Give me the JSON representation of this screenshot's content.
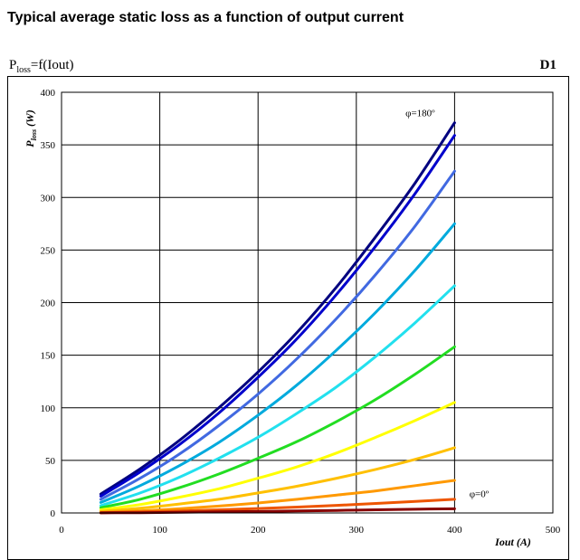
{
  "title": "Typical average static loss as a function of output current",
  "subtitle": {
    "main": "P",
    "sub": "loss",
    "rest": "=f(Iout)"
  },
  "code": "D1",
  "chart_data": {
    "type": "line",
    "xlabel": "Iout (A)",
    "ylabel": {
      "main": "P",
      "sub": "loss",
      "rest": " (W)"
    },
    "xlim": [
      0,
      500
    ],
    "ylim": [
      0,
      400
    ],
    "xticks": [
      0,
      100,
      200,
      300,
      400,
      500
    ],
    "yticks": [
      0,
      50,
      100,
      150,
      200,
      250,
      300,
      350,
      400
    ],
    "grid": true,
    "annotations": [
      {
        "text": "φ=180º",
        "x": 350,
        "y": 377
      },
      {
        "text": "φ=0º",
        "x": 415,
        "y": 15
      }
    ],
    "x": [
      40,
      80,
      120,
      160,
      200,
      240,
      280,
      320,
      360,
      400
    ],
    "series": [
      {
        "color": "#00007f",
        "values": [
          18,
          42,
          69,
          100,
          134,
          172,
          215,
          263,
          314,
          371
        ]
      },
      {
        "color": "#0000cc",
        "values": [
          16,
          39,
          65,
          95,
          129,
          166,
          208,
          254,
          304,
          359
        ]
      },
      {
        "color": "#4169e1",
        "values": [
          13,
          33,
          56,
          83,
          113,
          147,
          185,
          227,
          273,
          325
        ]
      },
      {
        "color": "#00aadd",
        "values": [
          10,
          26,
          45,
          67,
          93,
          122,
          155,
          191,
          231,
          275
        ]
      },
      {
        "color": "#22e0ee",
        "values": [
          7,
          19,
          34,
          52,
          72,
          95,
          120,
          149,
          181,
          216
        ]
      },
      {
        "color": "#22dd22",
        "values": [
          5,
          13,
          24,
          37,
          52,
          68,
          87,
          108,
          132,
          158
        ]
      },
      {
        "color": "#ffff00",
        "values": [
          3,
          8,
          15,
          23,
          33,
          44,
          57,
          72,
          88,
          105
        ]
      },
      {
        "color": "#ffc000",
        "values": [
          1.5,
          4.5,
          8.5,
          13,
          19,
          25.5,
          33,
          41.5,
          51,
          62
        ]
      },
      {
        "color": "#ff9900",
        "values": [
          0.5,
          2,
          4,
          6.5,
          9.5,
          13,
          17,
          21,
          26,
          31
        ]
      },
      {
        "color": "#ee5500",
        "values": [
          0.2,
          1,
          1.8,
          3,
          4.2,
          5.6,
          7.2,
          9,
          11,
          13
        ]
      },
      {
        "color": "#880000",
        "values": [
          0.1,
          0.3,
          0.6,
          1,
          1.4,
          1.9,
          2.4,
          3,
          3.5,
          4
        ]
      }
    ]
  }
}
